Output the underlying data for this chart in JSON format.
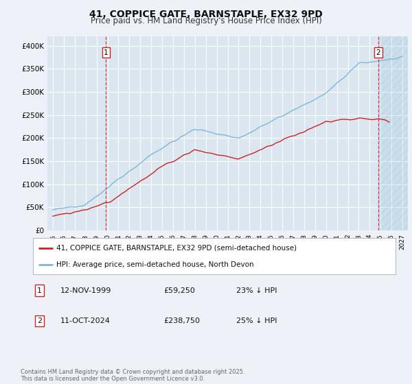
{
  "title_line1": "41, COPPICE GATE, BARNSTAPLE, EX32 9PD",
  "title_line2": "Price paid vs. HM Land Registry's House Price Index (HPI)",
  "ylabel_ticks": [
    "£0",
    "£50K",
    "£100K",
    "£150K",
    "£200K",
    "£250K",
    "£300K",
    "£350K",
    "£400K"
  ],
  "ytick_values": [
    0,
    50000,
    100000,
    150000,
    200000,
    250000,
    300000,
    350000,
    400000
  ],
  "ylim": [
    0,
    420000
  ],
  "xlim_years": [
    1994.5,
    2027.5
  ],
  "hpi_color": "#7ab8d9",
  "price_color": "#cc2222",
  "marker1_year": 1999.87,
  "marker1_value": 59250,
  "marker1_label": "1",
  "marker2_year": 2024.79,
  "marker2_value": 238750,
  "marker2_label": "2",
  "legend_line1": "41, COPPICE GATE, BARNSTAPLE, EX32 9PD (semi-detached house)",
  "legend_line2": "HPI: Average price, semi-detached house, North Devon",
  "footnote": "Contains HM Land Registry data © Crown copyright and database right 2025.\nThis data is licensed under the Open Government Licence v3.0.",
  "background_color": "#eef2f8",
  "plot_bg_color": "#dce6f0",
  "grid_color": "#ffffff"
}
